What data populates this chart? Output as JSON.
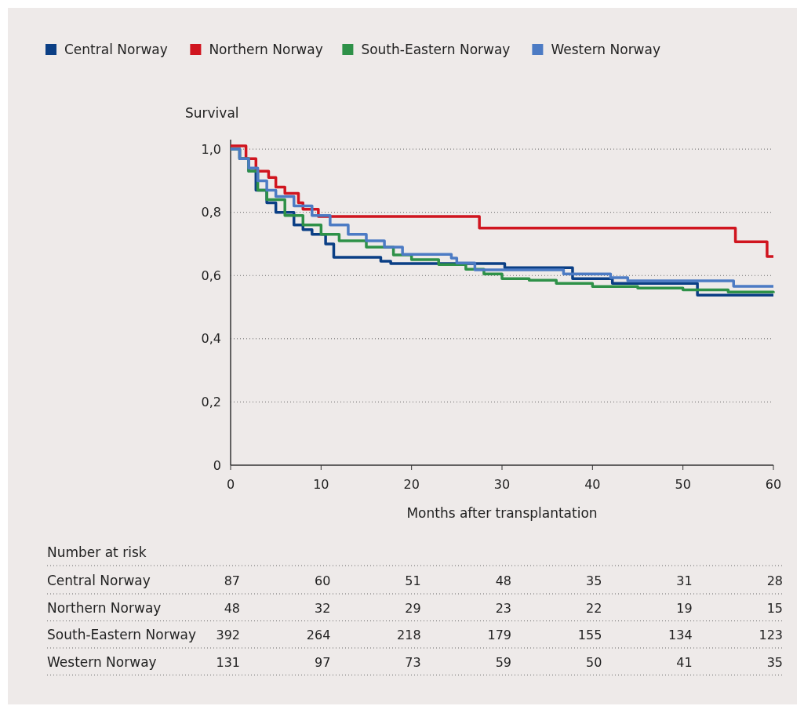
{
  "chart_data": {
    "type": "step",
    "ylabel": "Survival",
    "xlabel": "Months after transplantation",
    "xlim": [
      0,
      60
    ],
    "xticks": [
      0,
      10,
      20,
      30,
      40,
      50,
      60
    ],
    "ylim": [
      0,
      1.03
    ],
    "yticks": [
      0,
      {
        "value": 0.2,
        "label": "0,2"
      },
      {
        "value": 0.4,
        "label": "0,4"
      },
      {
        "value": 0.6,
        "label": "0,6"
      },
      {
        "value": 0.8,
        "label": "0,8"
      },
      {
        "value": 1,
        "label": "1,0"
      }
    ],
    "grid": "y",
    "legend": "top left",
    "line_style": "solid",
    "marker": "none",
    "series": [
      {
        "name": "Central Norway",
        "color": "#0b3f85",
        "x": [
          0,
          1,
          2,
          2.8,
          4,
          5,
          7,
          8,
          9,
          10.5,
          11.4,
          16.6,
          17.7,
          30.3,
          37.8,
          42.2,
          51.6,
          60
        ],
        "values": [
          1,
          0.97,
          0.93,
          0.87,
          0.83,
          0.8,
          0.76,
          0.745,
          0.73,
          0.7,
          0.658,
          0.645,
          0.638,
          0.625,
          0.59,
          0.575,
          0.538,
          0.538
        ]
      },
      {
        "name": "Northern Norway",
        "color": "#d0151f",
        "x": [
          0,
          1.7,
          2.8,
          4.2,
          5,
          6,
          7.5,
          8,
          9.7,
          27.5,
          55.8,
          59.3,
          60
        ],
        "values": [
          1.01,
          0.97,
          0.93,
          0.91,
          0.88,
          0.86,
          0.83,
          0.81,
          0.787,
          0.75,
          0.707,
          0.66,
          0.66
        ]
      },
      {
        "name": "South-Eastern Norway",
        "color": "#2e9148",
        "x": [
          0,
          1,
          2,
          3,
          4,
          6,
          8,
          10,
          12,
          15,
          18,
          20,
          23,
          26,
          28,
          30,
          33,
          36,
          40,
          45,
          50,
          55,
          60
        ],
        "values": [
          1,
          0.97,
          0.93,
          0.87,
          0.84,
          0.79,
          0.76,
          0.73,
          0.71,
          0.69,
          0.665,
          0.65,
          0.635,
          0.62,
          0.605,
          0.59,
          0.585,
          0.575,
          0.565,
          0.56,
          0.555,
          0.548,
          0.545
        ]
      },
      {
        "name": "Western Norway",
        "color": "#4c7bc4",
        "x": [
          0,
          1,
          2,
          3,
          4,
          5,
          7,
          9,
          11,
          13,
          15,
          17,
          19,
          23.3,
          24.4,
          25,
          27,
          36.8,
          42,
          43.9,
          55.6,
          60
        ],
        "values": [
          1,
          0.97,
          0.94,
          0.9,
          0.87,
          0.85,
          0.82,
          0.79,
          0.76,
          0.73,
          0.71,
          0.69,
          0.667,
          0.667,
          0.655,
          0.64,
          0.618,
          0.605,
          0.593,
          0.583,
          0.566,
          0.566
        ]
      }
    ],
    "annotations": [
      "Number at risk",
      "87",
      "60",
      "51",
      "48",
      "35",
      "31",
      "28",
      "48",
      "32",
      "29",
      "23",
      "22",
      "19",
      "15",
      "392",
      "264",
      "218",
      "179",
      "155",
      "134",
      "123",
      "131",
      "97",
      "73",
      "59",
      "50",
      "41",
      "35"
    ]
  }
}
